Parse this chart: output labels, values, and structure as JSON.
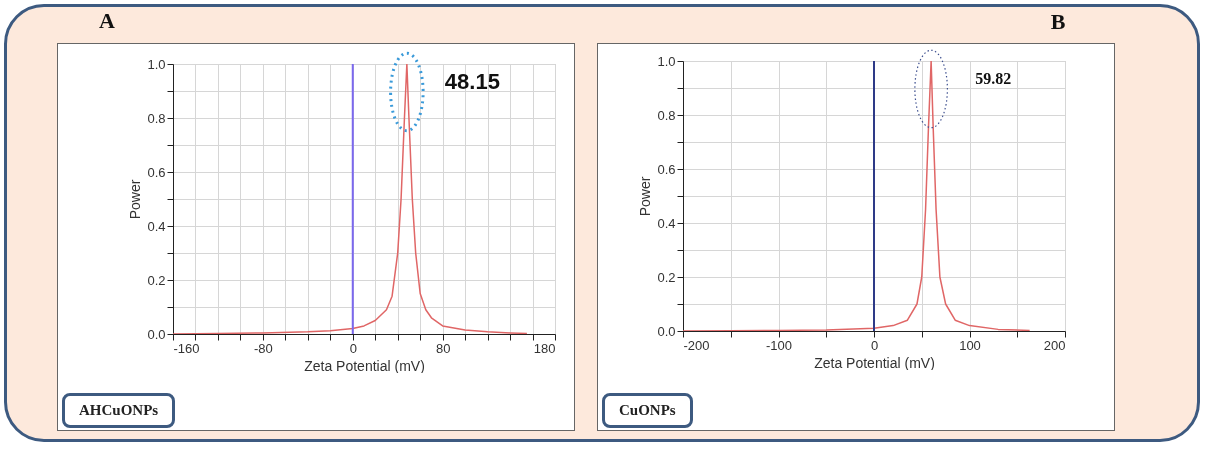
{
  "chart_data": [
    {
      "type": "line",
      "title": "A",
      "xlabel": "Zeta Potential (mV)",
      "ylabel": "Power",
      "grid": true,
      "legend": false,
      "marker": "none",
      "line_style": "solid",
      "xlim": [
        -160,
        180
      ],
      "ylim": [
        0,
        1
      ],
      "xticks": [
        -160,
        {
          "value": -140,
          "label": null
        },
        {
          "value": -120,
          "label": null
        },
        {
          "value": -100,
          "label": null
        },
        -80,
        {
          "value": -60,
          "label": null
        },
        {
          "value": -40,
          "label": null
        },
        {
          "value": -20,
          "label": null
        },
        0,
        {
          "value": 20,
          "label": null
        },
        {
          "value": 40,
          "label": null
        },
        {
          "value": 60,
          "label": null
        },
        80,
        {
          "value": 100,
          "label": null
        },
        {
          "value": 120,
          "label": null
        },
        {
          "value": 140,
          "label": null
        },
        {
          "value": 160,
          "label": null
        },
        180
      ],
      "yticks": [
        {
          "value": 0,
          "label": "0.0"
        },
        {
          "value": 0.1,
          "label": null
        },
        0.2,
        {
          "value": 0.3,
          "label": null
        },
        0.4,
        {
          "value": 0.5,
          "label": null
        },
        0.6,
        {
          "value": 0.7,
          "label": null
        },
        0.8,
        {
          "value": 0.9,
          "label": null
        },
        {
          "value": 1,
          "label": "1.0"
        }
      ],
      "series": [
        {
          "color": "#e06666",
          "x": [
            -160,
            -120,
            -80,
            -40,
            -20,
            0,
            10,
            20,
            30,
            35,
            40,
            43,
            46,
            48.15,
            50,
            53,
            56,
            60,
            65,
            70,
            80,
            100,
            120,
            140,
            155
          ],
          "values": [
            0,
            0.002,
            0.004,
            0.008,
            0.012,
            0.02,
            0.03,
            0.05,
            0.09,
            0.14,
            0.3,
            0.5,
            0.8,
            1,
            0.8,
            0.5,
            0.3,
            0.15,
            0.09,
            0.06,
            0.03,
            0.015,
            0.008,
            0.004,
            0.002
          ]
        }
      ],
      "ref_lines": [
        {
          "axis": "x",
          "value": 0,
          "color": "#7b68ee"
        }
      ],
      "annotations": [
        {
          "text": "48.15",
          "x": 48.15,
          "y": 1
        },
        "AHCuONPs"
      ]
    },
    {
      "type": "line",
      "title": "B",
      "xlabel": "Zeta Potential (mV)",
      "ylabel": "Power",
      "grid": true,
      "legend": false,
      "marker": "none",
      "line_style": "solid",
      "xlim": [
        -200,
        200
      ],
      "ylim": [
        0,
        1
      ],
      "xticks": [
        -200,
        {
          "value": -150,
          "label": null
        },
        -100,
        {
          "value": -50,
          "label": null
        },
        0,
        {
          "value": 50,
          "label": null
        },
        100,
        {
          "value": 150,
          "label": null
        },
        200
      ],
      "yticks": [
        {
          "value": 0,
          "label": "0.0"
        },
        {
          "value": 0.1,
          "label": null
        },
        0.2,
        {
          "value": 0.3,
          "label": null
        },
        0.4,
        {
          "value": 0.5,
          "label": null
        },
        0.6,
        {
          "value": 0.7,
          "label": null
        },
        0.8,
        {
          "value": 0.9,
          "label": null
        },
        {
          "value": 1,
          "label": "1.0"
        }
      ],
      "series": [
        {
          "color": "#e06666",
          "x": [
            -200,
            -150,
            -100,
            -50,
            0,
            20,
            35,
            45,
            50,
            54,
            57,
            59.82,
            62,
            65,
            69,
            75,
            85,
            100,
            130,
            163
          ],
          "values": [
            0,
            0.001,
            0.002,
            0.004,
            0.01,
            0.02,
            0.04,
            0.1,
            0.2,
            0.45,
            0.75,
            1,
            0.75,
            0.45,
            0.2,
            0.1,
            0.04,
            0.02,
            0.006,
            0.002
          ]
        }
      ],
      "ref_lines": [
        {
          "axis": "x",
          "value": 0,
          "color": "#2e3a87"
        }
      ],
      "annotations": [
        {
          "text": "59.82",
          "x": 59.82,
          "y": 1
        },
        "CuONPs"
      ]
    }
  ]
}
